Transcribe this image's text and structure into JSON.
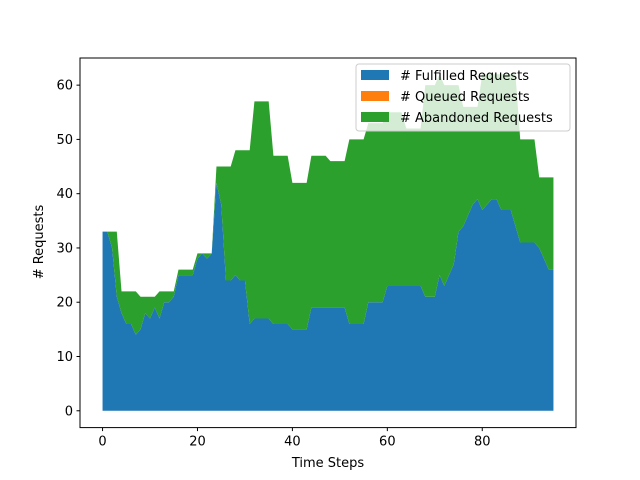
{
  "chart_data": {
    "type": "area",
    "stacked": true,
    "xlabel": "Time Steps",
    "ylabel": "# Requests",
    "xlim": [
      -4.75,
      99.75
    ],
    "ylim": [
      -3.1,
      65.0
    ],
    "xticks": [
      0,
      20,
      40,
      60,
      80
    ],
    "yticks": [
      0,
      10,
      20,
      30,
      40,
      50,
      60
    ],
    "legend_position": "top-right",
    "grid": false,
    "x": [
      0,
      1,
      2,
      3,
      4,
      5,
      6,
      7,
      8,
      9,
      10,
      11,
      12,
      13,
      14,
      15,
      16,
      17,
      18,
      19,
      20,
      21,
      22,
      23,
      24,
      25,
      26,
      27,
      28,
      29,
      30,
      31,
      32,
      33,
      34,
      35,
      36,
      37,
      38,
      39,
      40,
      41,
      42,
      43,
      44,
      45,
      46,
      47,
      48,
      49,
      50,
      51,
      52,
      53,
      54,
      55,
      56,
      57,
      58,
      59,
      60,
      61,
      62,
      63,
      64,
      65,
      66,
      67,
      68,
      69,
      70,
      71,
      72,
      73,
      74,
      75,
      76,
      77,
      78,
      79,
      80,
      81,
      82,
      83,
      84,
      85,
      86,
      87,
      88,
      89,
      90,
      91,
      92,
      93,
      94,
      95
    ],
    "series": [
      {
        "name": "# Fulfilled Requests",
        "color": "#1f77b4",
        "values": [
          33,
          33,
          30,
          21,
          18,
          16,
          16,
          14,
          15,
          18,
          17,
          19,
          17,
          20,
          20,
          21,
          25,
          25,
          25,
          25,
          28,
          29,
          28,
          29,
          42,
          38,
          24,
          24,
          25,
          24,
          24,
          16,
          17,
          17,
          17,
          17,
          16,
          16,
          16,
          16,
          15,
          15,
          15,
          15,
          19,
          19,
          19,
          19,
          19,
          19,
          19,
          19,
          16,
          16,
          16,
          16,
          20,
          20,
          20,
          20,
          23,
          23,
          23,
          23,
          23,
          23,
          23,
          23,
          21,
          21,
          21,
          25,
          23,
          25,
          27,
          33,
          34,
          36,
          38,
          39,
          37,
          38,
          39,
          39,
          37,
          37,
          37,
          34,
          31,
          31,
          31,
          31,
          30,
          28,
          26,
          26
        ]
      },
      {
        "name": "# Queued Requests",
        "color": "#ff7f0e",
        "values": [
          0,
          0,
          0,
          0,
          0,
          0,
          0,
          0,
          0,
          0,
          0,
          0,
          0,
          0,
          0,
          0,
          0,
          0,
          0,
          0,
          0,
          0,
          0,
          0,
          0,
          0,
          0,
          0,
          0,
          0,
          0,
          0,
          0,
          0,
          0,
          0,
          0,
          0,
          0,
          0,
          0,
          0,
          0,
          0,
          0,
          0,
          0,
          0,
          0,
          0,
          0,
          0,
          0,
          0,
          0,
          0,
          0,
          0,
          0,
          0,
          0,
          0,
          0,
          0,
          0,
          0,
          0,
          0,
          0,
          0,
          0,
          0,
          0,
          0,
          0,
          0,
          0,
          0,
          0,
          0,
          0,
          0,
          0,
          0,
          0,
          0,
          0,
          0,
          0,
          0,
          0,
          0,
          0,
          0,
          0,
          0
        ]
      },
      {
        "name": "# Abandoned Requests",
        "color": "#2ca02c",
        "values": [
          0,
          0,
          3,
          12,
          4,
          6,
          6,
          8,
          6,
          3,
          4,
          2,
          5,
          2,
          2,
          1,
          1,
          1,
          1,
          1,
          1,
          0,
          1,
          0,
          3,
          7,
          21,
          21,
          23,
          24,
          24,
          32,
          40,
          40,
          40,
          40,
          31,
          31,
          31,
          31,
          27,
          27,
          27,
          27,
          28,
          28,
          28,
          28,
          27,
          27,
          27,
          27,
          34,
          34,
          34,
          34,
          33,
          33,
          33,
          33,
          32,
          32,
          32,
          32,
          29,
          29,
          29,
          29,
          39,
          39,
          39,
          37,
          37,
          35,
          33,
          27,
          22,
          20,
          18,
          17,
          25,
          24,
          23,
          23,
          25,
          25,
          25,
          28,
          19,
          19,
          19,
          19,
          13,
          15,
          17,
          17
        ]
      }
    ]
  }
}
